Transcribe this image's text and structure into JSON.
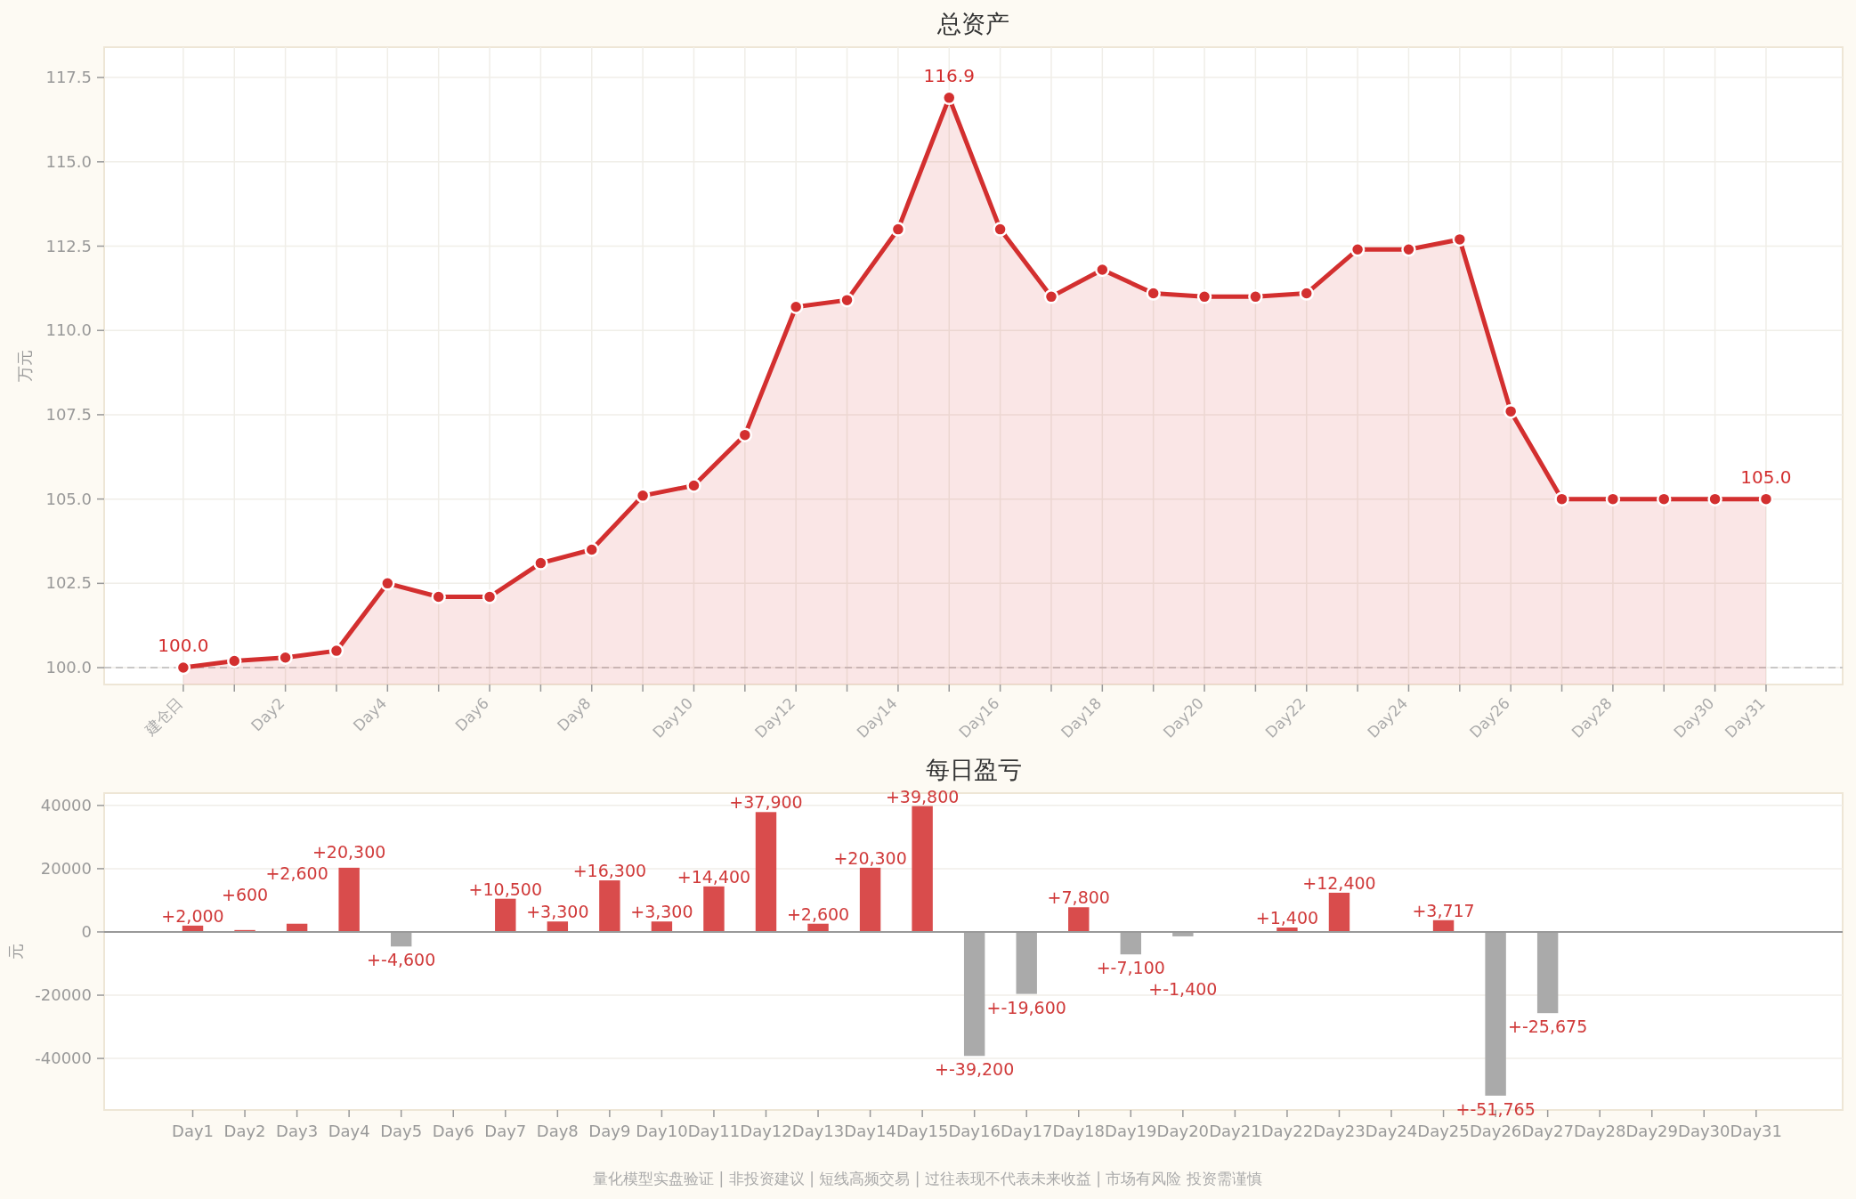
{
  "chart_data": [
    {
      "type": "area",
      "title": "总资产",
      "ylabel": "万元",
      "marker": "circle",
      "grid": true,
      "categories": [
        "建仓日",
        null,
        "Day2",
        null,
        "Day4",
        null,
        "Day6",
        null,
        "Day8",
        null,
        "Day10",
        null,
        "Day12",
        null,
        "Day14",
        null,
        "Day16",
        null,
        "Day18",
        null,
        "Day20",
        null,
        "Day22",
        null,
        "Day24",
        null,
        "Day26",
        null,
        "Day28",
        null,
        "Day30",
        "Day31"
      ],
      "series": [
        {
          "color": "#d32f2f",
          "values": [
            100.0,
            100.2,
            100.3,
            100.5,
            102.5,
            102.1,
            102.1,
            103.1,
            103.5,
            105.1,
            105.4,
            106.9,
            110.7,
            110.9,
            113.0,
            116.9,
            113.0,
            111.0,
            111.8,
            111.1,
            111.0,
            111.0,
            111.1,
            112.4,
            112.4,
            112.7,
            107.6,
            105.0,
            105.0,
            105.0,
            105.0,
            105.0
          ],
          "value_labels": [
            "100.0",
            null,
            null,
            null,
            null,
            null,
            null,
            null,
            null,
            null,
            null,
            null,
            null,
            null,
            null,
            "116.9",
            null,
            null,
            null,
            null,
            null,
            null,
            null,
            null,
            null,
            null,
            null,
            null,
            null,
            null,
            null,
            "105.0"
          ]
        }
      ],
      "ylim": [
        99.5,
        118.4
      ],
      "yticks": [
        {
          "value": 100,
          "label": "100.0"
        },
        {
          "value": 102.5,
          "label": "102.5"
        },
        {
          "value": 105,
          "label": "105.0"
        },
        {
          "value": 107.5,
          "label": "107.5"
        },
        {
          "value": 110,
          "label": "110.0"
        },
        {
          "value": 112.5,
          "label": "112.5"
        },
        {
          "value": 115,
          "label": "115.0"
        },
        {
          "value": 117.5,
          "label": "117.5"
        }
      ],
      "ref_lines": [
        {
          "axis": "y",
          "value": 100,
          "line_style": "dashed",
          "color": "#bbbbbb"
        }
      ]
    },
    {
      "type": "bar",
      "title": "每日盈亏",
      "ylabel": "元",
      "grid": "y",
      "categories": [
        "Day1",
        "Day2",
        "Day3",
        "Day4",
        "Day5",
        "Day6",
        "Day7",
        "Day8",
        "Day9",
        "Day10",
        "Day11",
        "Day12",
        "Day13",
        "Day14",
        "Day15",
        "Day16",
        "Day17",
        "Day18",
        "Day19",
        "Day20",
        "Day21",
        "Day22",
        "Day23",
        "Day24",
        "Day25",
        "Day26",
        "Day27",
        "Day28",
        "Day29",
        "Day30",
        "Day31"
      ],
      "values": [
        2000,
        600,
        2600,
        20300,
        -4600,
        0,
        10500,
        3300,
        16300,
        3300,
        14400,
        37900,
        2600,
        20300,
        39800,
        -39200,
        -19600,
        7800,
        -7100,
        -1400,
        0,
        1400,
        12400,
        0,
        3717,
        -51765,
        -25675,
        0,
        0,
        0,
        0
      ],
      "colors": [
        "#d94c4c",
        "#d94c4c",
        "#d94c4c",
        "#d94c4c",
        "#aaaaaa",
        "#d94c4c",
        "#d94c4c",
        "#d94c4c",
        "#d94c4c",
        "#d94c4c",
        "#d94c4c",
        "#d94c4c",
        "#d94c4c",
        "#d94c4c",
        "#d94c4c",
        "#aaaaaa",
        "#aaaaaa",
        "#d94c4c",
        "#aaaaaa",
        "#aaaaaa",
        "#d94c4c",
        "#d94c4c",
        "#d94c4c",
        "#d94c4c",
        "#d94c4c",
        "#aaaaaa",
        "#aaaaaa",
        "#d94c4c",
        "#d94c4c",
        "#d94c4c",
        "#d94c4c"
      ],
      "value_labels": [
        "+2,000",
        "+600",
        "+2,600",
        "+20,300",
        "+-4,600",
        null,
        "+10,500",
        "+3,300",
        "+16,300",
        "+3,300",
        "+14,400",
        "+37,900",
        "+2,600",
        "+20,300",
        "+39,800",
        "+-39,200",
        "+-19,600",
        "+7,800",
        "+-7,100",
        "+-1,400",
        null,
        "+1,400",
        "+12,400",
        null,
        "+3,717",
        "+-51,765",
        "+-25,675",
        null,
        null,
        null,
        null
      ],
      "ylim": [
        -56300,
        43900
      ],
      "yticks": [
        -40000,
        -20000,
        0,
        20000,
        40000
      ],
      "annotations": [
        "量化模型实盘验证 | 非投资建议 | 短线高频交易 | 过往表现不代表未来收益 | 市场有风险 投资需谨慎"
      ]
    }
  ]
}
